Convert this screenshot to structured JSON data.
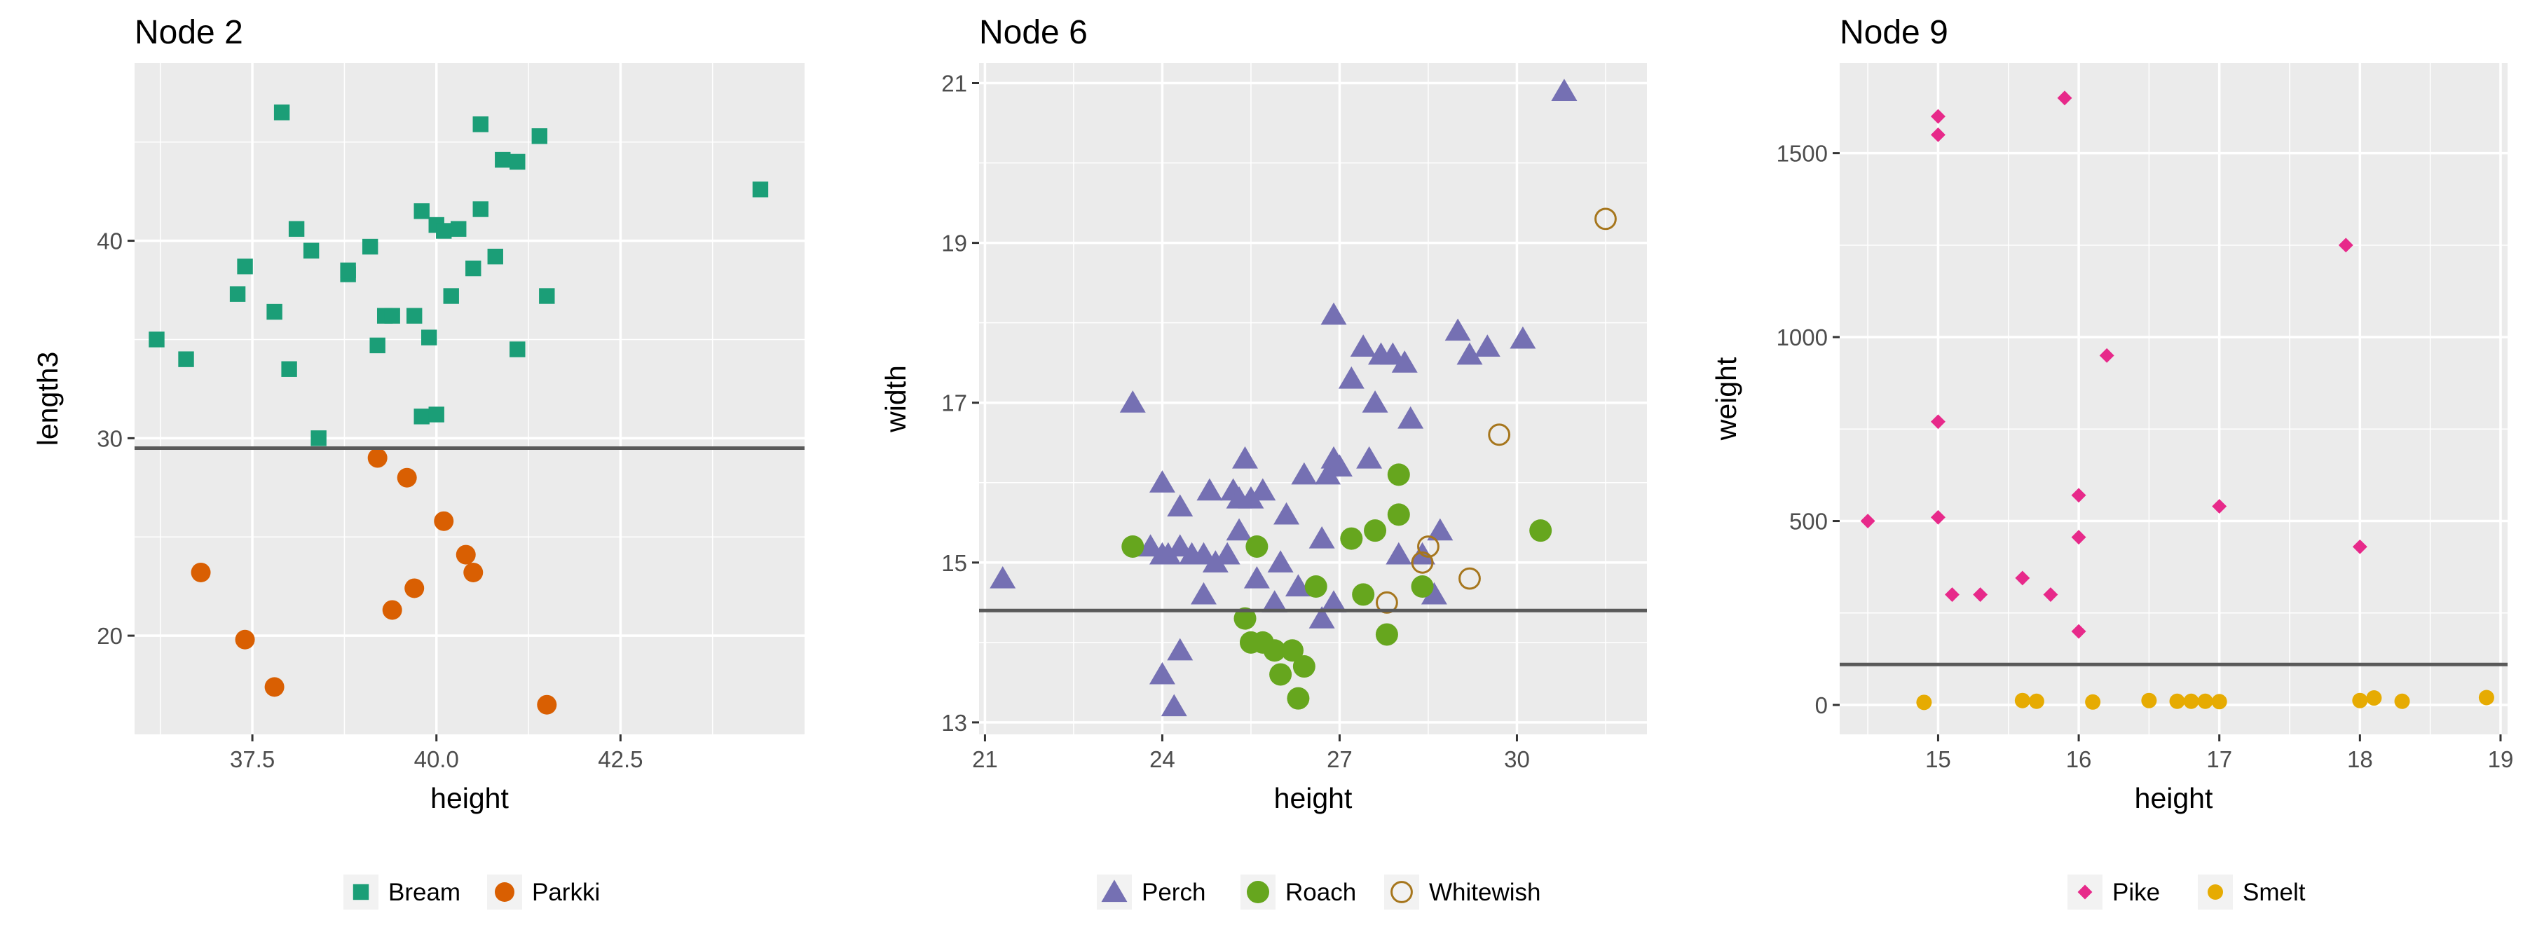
{
  "chart_data": [
    {
      "type": "scatter",
      "title": "Node 2",
      "xlabel": "height",
      "ylabel": "length3",
      "xlim": [
        35.9,
        45.0
      ],
      "ylim": [
        15.0,
        49.0
      ],
      "xticks": [
        37.5,
        40.0,
        42.5
      ],
      "xtick_labels": [
        "37.5",
        "40.0",
        "42.5"
      ],
      "yticks": [
        20,
        30,
        40
      ],
      "ytick_labels": [
        "20",
        "30",
        "40"
      ],
      "grid": true,
      "legend": "bottom",
      "split_line": 29.5,
      "series": [
        {
          "name": "Bream",
          "shape": "square",
          "filled": true,
          "color": "#1B9E77",
          "points": [
            [
              36.2,
              35.0
            ],
            [
              36.6,
              34.0
            ],
            [
              37.3,
              37.3
            ],
            [
              37.4,
              38.7
            ],
            [
              37.8,
              36.4
            ],
            [
              37.9,
              46.5
            ],
            [
              38.0,
              33.5
            ],
            [
              38.1,
              40.6
            ],
            [
              38.3,
              39.5
            ],
            [
              38.4,
              30.0
            ],
            [
              38.8,
              38.3
            ],
            [
              38.8,
              38.5
            ],
            [
              39.1,
              39.7
            ],
            [
              39.2,
              34.7
            ],
            [
              39.3,
              36.2
            ],
            [
              39.4,
              36.2
            ],
            [
              39.7,
              36.2
            ],
            [
              39.8,
              41.5
            ],
            [
              39.8,
              31.1
            ],
            [
              39.9,
              35.1
            ],
            [
              40.0,
              40.8
            ],
            [
              40.0,
              31.2
            ],
            [
              40.1,
              40.5
            ],
            [
              40.2,
              37.2
            ],
            [
              40.3,
              40.6
            ],
            [
              40.5,
              38.6
            ],
            [
              40.6,
              41.6
            ],
            [
              40.6,
              45.9
            ],
            [
              40.8,
              39.2
            ],
            [
              40.9,
              44.1
            ],
            [
              41.1,
              44.0
            ],
            [
              41.1,
              34.5
            ],
            [
              41.4,
              45.3
            ],
            [
              41.5,
              37.2
            ],
            [
              44.4,
              42.6
            ]
          ]
        },
        {
          "name": "Parkki",
          "shape": "circle",
          "filled": true,
          "color": "#D95F02",
          "points": [
            [
              36.8,
              23.2
            ],
            [
              37.4,
              19.8
            ],
            [
              37.8,
              17.4
            ],
            [
              39.2,
              29.0
            ],
            [
              39.4,
              21.3
            ],
            [
              39.6,
              28.0
            ],
            [
              39.7,
              22.4
            ],
            [
              40.1,
              25.8
            ],
            [
              40.4,
              24.1
            ],
            [
              40.5,
              23.2
            ],
            [
              41.5,
              16.5
            ]
          ]
        }
      ]
    },
    {
      "type": "scatter",
      "title": "Node 6",
      "xlabel": "height",
      "ylabel": "width",
      "xlim": [
        20.9,
        32.2
      ],
      "ylim": [
        12.85,
        21.25
      ],
      "xticks": [
        21,
        24,
        27,
        30
      ],
      "xtick_labels": [
        "21",
        "24",
        "27",
        "30"
      ],
      "yticks": [
        13,
        15,
        17,
        19,
        21
      ],
      "ytick_labels": [
        "13",
        "15",
        "17",
        "19",
        "21"
      ],
      "grid": true,
      "legend": "bottom",
      "split_line": 14.4,
      "series": [
        {
          "name": "Perch",
          "shape": "triangle",
          "filled": true,
          "color": "#7570B3",
          "points": [
            [
              21.3,
              14.8
            ],
            [
              23.5,
              17.0
            ],
            [
              23.8,
              15.2
            ],
            [
              24.0,
              16.0
            ],
            [
              24.0,
              15.1
            ],
            [
              24.1,
              15.1
            ],
            [
              24.0,
              13.6
            ],
            [
              24.2,
              13.2
            ],
            [
              24.3,
              13.9
            ],
            [
              24.3,
              15.7
            ],
            [
              24.3,
              15.2
            ],
            [
              24.5,
              15.1
            ],
            [
              24.7,
              15.1
            ],
            [
              24.7,
              14.6
            ],
            [
              24.8,
              15.9
            ],
            [
              24.9,
              15.0
            ],
            [
              25.1,
              15.1
            ],
            [
              25.2,
              15.9
            ],
            [
              25.3,
              15.4
            ],
            [
              25.3,
              15.8
            ],
            [
              25.4,
              16.3
            ],
            [
              25.5,
              15.8
            ],
            [
              25.6,
              14.8
            ],
            [
              25.7,
              15.9
            ],
            [
              25.9,
              14.5
            ],
            [
              26.0,
              15.0
            ],
            [
              26.1,
              15.6
            ],
            [
              26.3,
              14.7
            ],
            [
              26.4,
              16.1
            ],
            [
              26.7,
              14.3
            ],
            [
              26.7,
              15.3
            ],
            [
              26.8,
              16.1
            ],
            [
              26.9,
              16.3
            ],
            [
              26.9,
              14.5
            ],
            [
              26.9,
              18.1
            ],
            [
              27.0,
              16.2
            ],
            [
              27.2,
              17.3
            ],
            [
              27.4,
              17.7
            ],
            [
              27.5,
              16.3
            ],
            [
              27.6,
              17.0
            ],
            [
              27.7,
              17.6
            ],
            [
              27.9,
              17.6
            ],
            [
              28.0,
              15.1
            ],
            [
              28.1,
              17.5
            ],
            [
              28.2,
              16.8
            ],
            [
              28.4,
              15.1
            ],
            [
              28.6,
              14.6
            ],
            [
              28.7,
              15.4
            ],
            [
              29.0,
              17.9
            ],
            [
              29.2,
              17.6
            ],
            [
              29.5,
              17.7
            ],
            [
              30.1,
              17.8
            ],
            [
              30.8,
              20.9
            ]
          ]
        },
        {
          "name": "Roach",
          "shape": "circle",
          "filled": true,
          "color": "#66A61E",
          "points": [
            [
              23.5,
              15.2
            ],
            [
              25.4,
              14.3
            ],
            [
              25.5,
              14.0
            ],
            [
              25.6,
              15.2
            ],
            [
              25.7,
              14.0
            ],
            [
              25.9,
              13.9
            ],
            [
              26.0,
              13.6
            ],
            [
              26.2,
              13.9
            ],
            [
              26.3,
              13.3
            ],
            [
              26.4,
              13.7
            ],
            [
              26.6,
              14.7
            ],
            [
              27.2,
              15.3
            ],
            [
              27.4,
              14.6
            ],
            [
              27.6,
              15.4
            ],
            [
              27.8,
              14.1
            ],
            [
              28.0,
              15.6
            ],
            [
              28.0,
              16.1
            ],
            [
              28.4,
              14.7
            ],
            [
              30.4,
              15.4
            ]
          ]
        },
        {
          "name": "Whitewish",
          "shape": "circle",
          "filled": false,
          "color": "#A6761D",
          "points": [
            [
              27.8,
              14.5
            ],
            [
              28.4,
              15.0
            ],
            [
              28.5,
              15.2
            ],
            [
              29.2,
              14.8
            ],
            [
              29.7,
              16.6
            ],
            [
              31.5,
              19.3
            ]
          ]
        }
      ]
    },
    {
      "type": "scatter",
      "title": "Node 9",
      "xlabel": "height",
      "ylabel": "weight",
      "xlim": [
        14.3,
        19.05
      ],
      "ylim": [
        -80,
        1745
      ],
      "xticks": [
        15,
        16,
        17,
        18,
        19
      ],
      "xtick_labels": [
        "15",
        "16",
        "17",
        "18",
        "19"
      ],
      "yticks": [
        0,
        500,
        1000,
        1500
      ],
      "ytick_labels": [
        "0",
        "500",
        "1000",
        "1500"
      ],
      "grid": true,
      "legend": "bottom",
      "split_line": 110,
      "series": [
        {
          "name": "Pike",
          "shape": "diamond",
          "filled": true,
          "color": "#E7298A",
          "points": [
            [
              14.5,
              500
            ],
            [
              15.0,
              1600
            ],
            [
              15.0,
              1550
            ],
            [
              15.0,
              770
            ],
            [
              15.0,
              510
            ],
            [
              15.1,
              300
            ],
            [
              15.3,
              300
            ],
            [
              15.6,
              345
            ],
            [
              15.8,
              300
            ],
            [
              15.9,
              1650
            ],
            [
              16.0,
              570
            ],
            [
              16.0,
              456
            ],
            [
              16.0,
              200
            ],
            [
              16.2,
              950
            ],
            [
              17.0,
              540
            ],
            [
              17.9,
              1250
            ],
            [
              18.0,
              430
            ]
          ]
        },
        {
          "name": "Smelt",
          "shape": "circle",
          "filled": true,
          "color": "#E6AB02",
          "points": [
            [
              14.9,
              7
            ],
            [
              15.6,
              12
            ],
            [
              15.7,
              10
            ],
            [
              16.1,
              8
            ],
            [
              16.5,
              12
            ],
            [
              16.7,
              10
            ],
            [
              16.8,
              10
            ],
            [
              16.9,
              10
            ],
            [
              17.0,
              9
            ],
            [
              18.0,
              12
            ],
            [
              18.1,
              19
            ],
            [
              18.3,
              10
            ],
            [
              18.9,
              20
            ]
          ]
        }
      ]
    }
  ]
}
